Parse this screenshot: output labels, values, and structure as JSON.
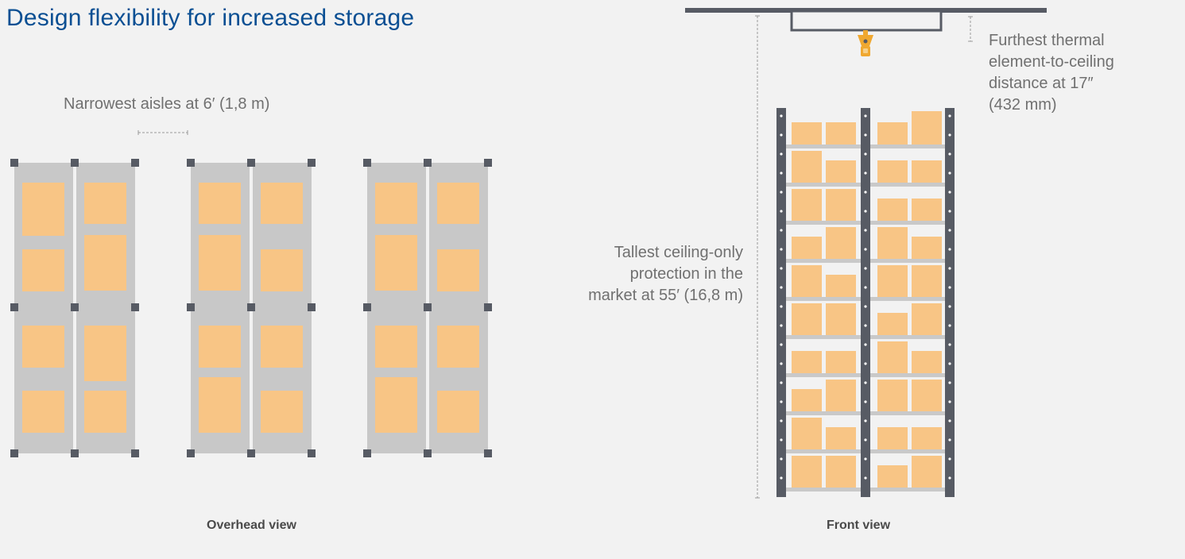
{
  "title": "Design flexibility for increased storage",
  "annotations": {
    "aisle": "Narrowest aisles at 6′ (1,8 m)",
    "ceiling_lines": [
      "Tallest ceiling-only",
      "protection in the",
      "market at 55′ (16,8 m)"
    ],
    "thermal_lines": [
      "Furthest thermal",
      "element-to-ceiling",
      "distance at 17″",
      "(432 mm)"
    ]
  },
  "views": {
    "overhead": "Overhead view",
    "front": "Front view"
  },
  "colors": {
    "title": "#0a4f93",
    "rack": "#c8c8c8",
    "box": "#f8c585",
    "post": "#575b64",
    "sprinkler": "#f0a830",
    "caption": "#707070"
  }
}
